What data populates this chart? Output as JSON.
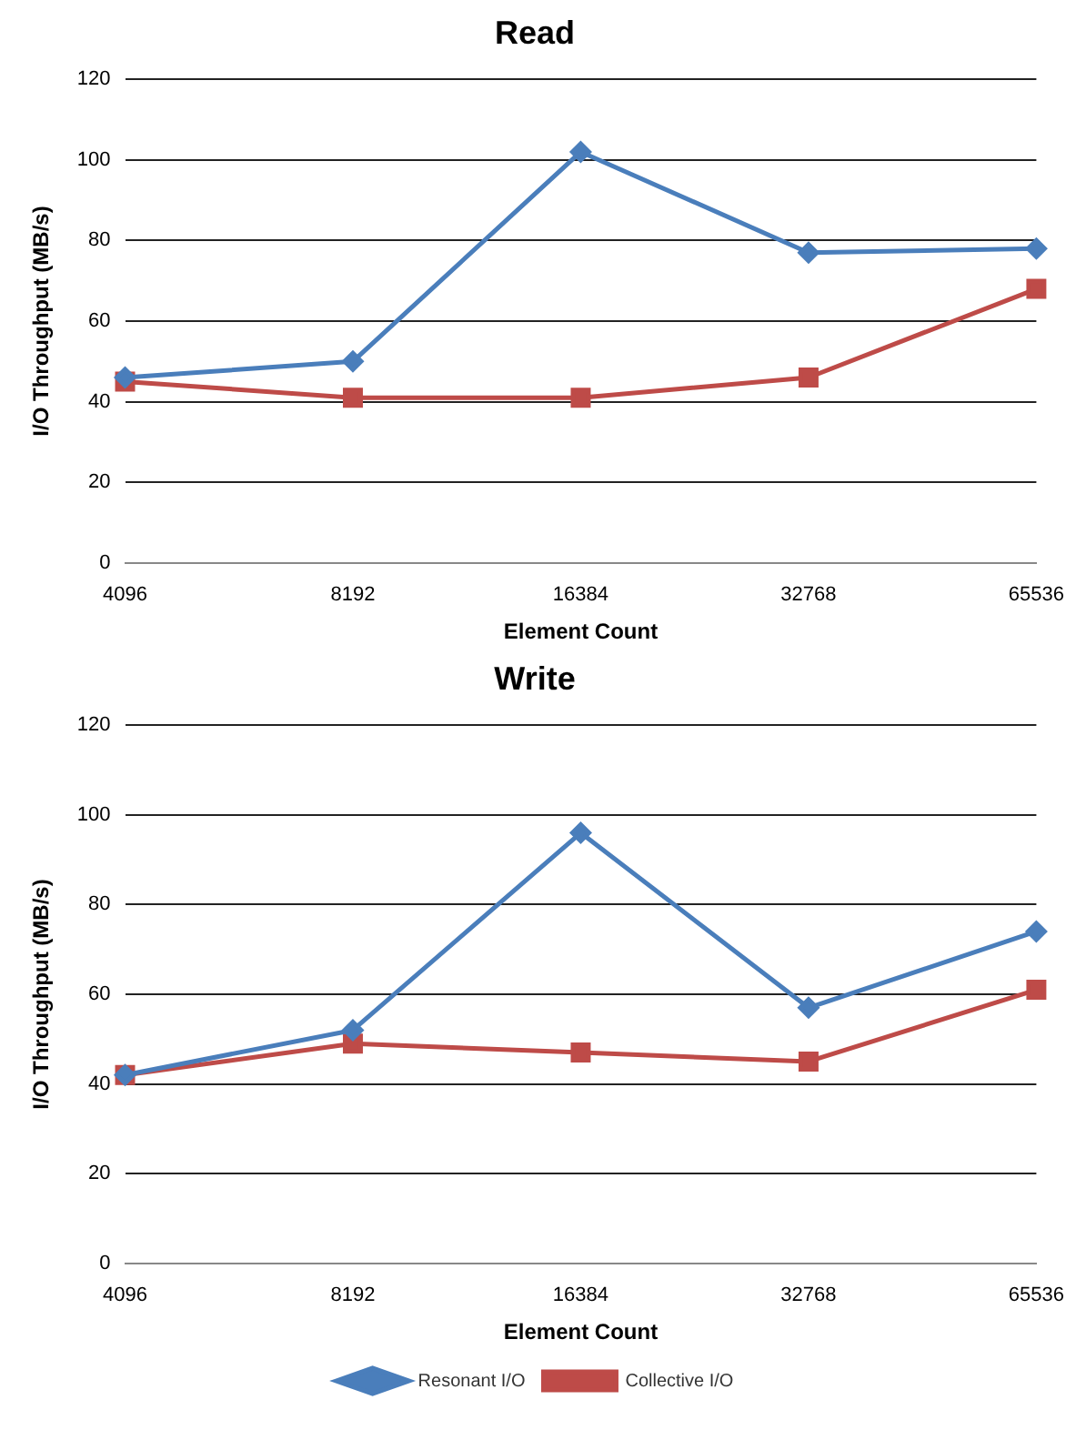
{
  "chart_data": [
    {
      "type": "line",
      "title": "Read",
      "xlabel": "Element Count",
      "ylabel": "I/O Throughput (MB/s)",
      "categories": [
        "4096",
        "8192",
        "16384",
        "32768",
        "65536"
      ],
      "ylim": [
        0,
        120
      ],
      "yticks": [
        0,
        20,
        40,
        60,
        80,
        100,
        120
      ],
      "grid": "y",
      "legend": false,
      "series": [
        {
          "color": "#4a7ebb",
          "marker": "diamond",
          "values": [
            46,
            50,
            102,
            77,
            78
          ]
        },
        {
          "color": "#be4b48",
          "marker": "square",
          "values": [
            45,
            41,
            41,
            46,
            68
          ]
        }
      ]
    },
    {
      "type": "line",
      "title": "Write",
      "xlabel": "Element Count",
      "ylabel": "I/O Throughput (MB/s)",
      "categories": [
        "4096",
        "8192",
        "16384",
        "32768",
        "65536"
      ],
      "ylim": [
        0,
        120
      ],
      "yticks": [
        0,
        20,
        40,
        60,
        80,
        100,
        120
      ],
      "grid": "y",
      "legend": "bottom",
      "series": [
        {
          "name": "Resonant I/O",
          "color": "#4a7ebb",
          "marker": "diamond",
          "values": [
            42,
            52,
            96,
            57,
            74
          ]
        },
        {
          "name": "Collective I/O",
          "color": "#be4b48",
          "marker": "square",
          "values": [
            42,
            49,
            47,
            45,
            61
          ]
        }
      ]
    }
  ]
}
